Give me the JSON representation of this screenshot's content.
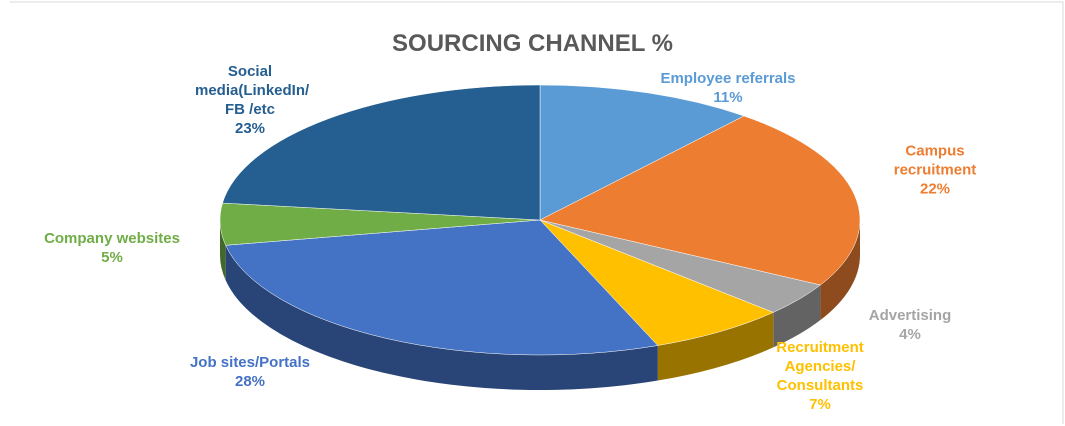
{
  "chart_data": {
    "type": "pie",
    "title": "SOURCING CHANNEL %",
    "categories": [
      "Employee referrals",
      "Campus recruitment",
      "Advertising",
      "Recruitment Agencies/ Consultants",
      "Job sites/Portals",
      "Company websites",
      "Social media(LinkedIn/ FB /etc"
    ],
    "values": [
      11,
      22,
      4,
      7,
      28,
      5,
      23
    ],
    "value_labels": [
      "11%",
      "22%",
      "4%",
      "7%",
      "28%",
      "5%",
      "23%"
    ],
    "colors": [
      "#5b9bd5",
      "#ed7d31",
      "#a5a5a5",
      "#ffc000",
      "#4472c4",
      "#70ad47",
      "#255e91"
    ]
  }
}
